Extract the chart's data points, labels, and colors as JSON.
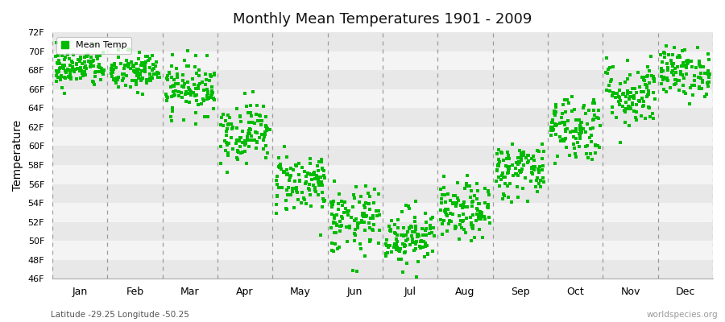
{
  "title": "Monthly Mean Temperatures 1901 - 2009",
  "ylabel": "Temperature",
  "xlabel_labels": [
    "Jan",
    "Feb",
    "Mar",
    "Apr",
    "May",
    "Jun",
    "Jul",
    "Aug",
    "Sep",
    "Oct",
    "Nov",
    "Dec"
  ],
  "legend_label": "Mean Temp",
  "dot_color": "#00bb00",
  "background_color": "#ffffff",
  "plot_bg_color": "#ffffff",
  "vline_color": "#888888",
  "ylim": [
    46,
    72
  ],
  "yticks": [
    46,
    48,
    50,
    52,
    54,
    56,
    58,
    60,
    62,
    64,
    66,
    68,
    70,
    72
  ],
  "ytick_labels": [
    "46F",
    "48F",
    "50F",
    "52F",
    "54F",
    "56F",
    "58F",
    "60F",
    "62F",
    "64F",
    "66F",
    "68F",
    "70F",
    "72F"
  ],
  "footer_left": "Latitude -29.25 Longitude -50.25",
  "footer_right": "worldspecies.org",
  "n_years": 109,
  "monthly_means": [
    68.2,
    67.8,
    66.2,
    61.5,
    56.2,
    52.0,
    50.5,
    53.0,
    57.5,
    62.0,
    65.5,
    67.8
  ],
  "monthly_stds": [
    1.0,
    1.1,
    1.4,
    1.6,
    1.6,
    1.8,
    1.5,
    1.5,
    1.5,
    1.8,
    1.8,
    1.3
  ],
  "seed": 42
}
